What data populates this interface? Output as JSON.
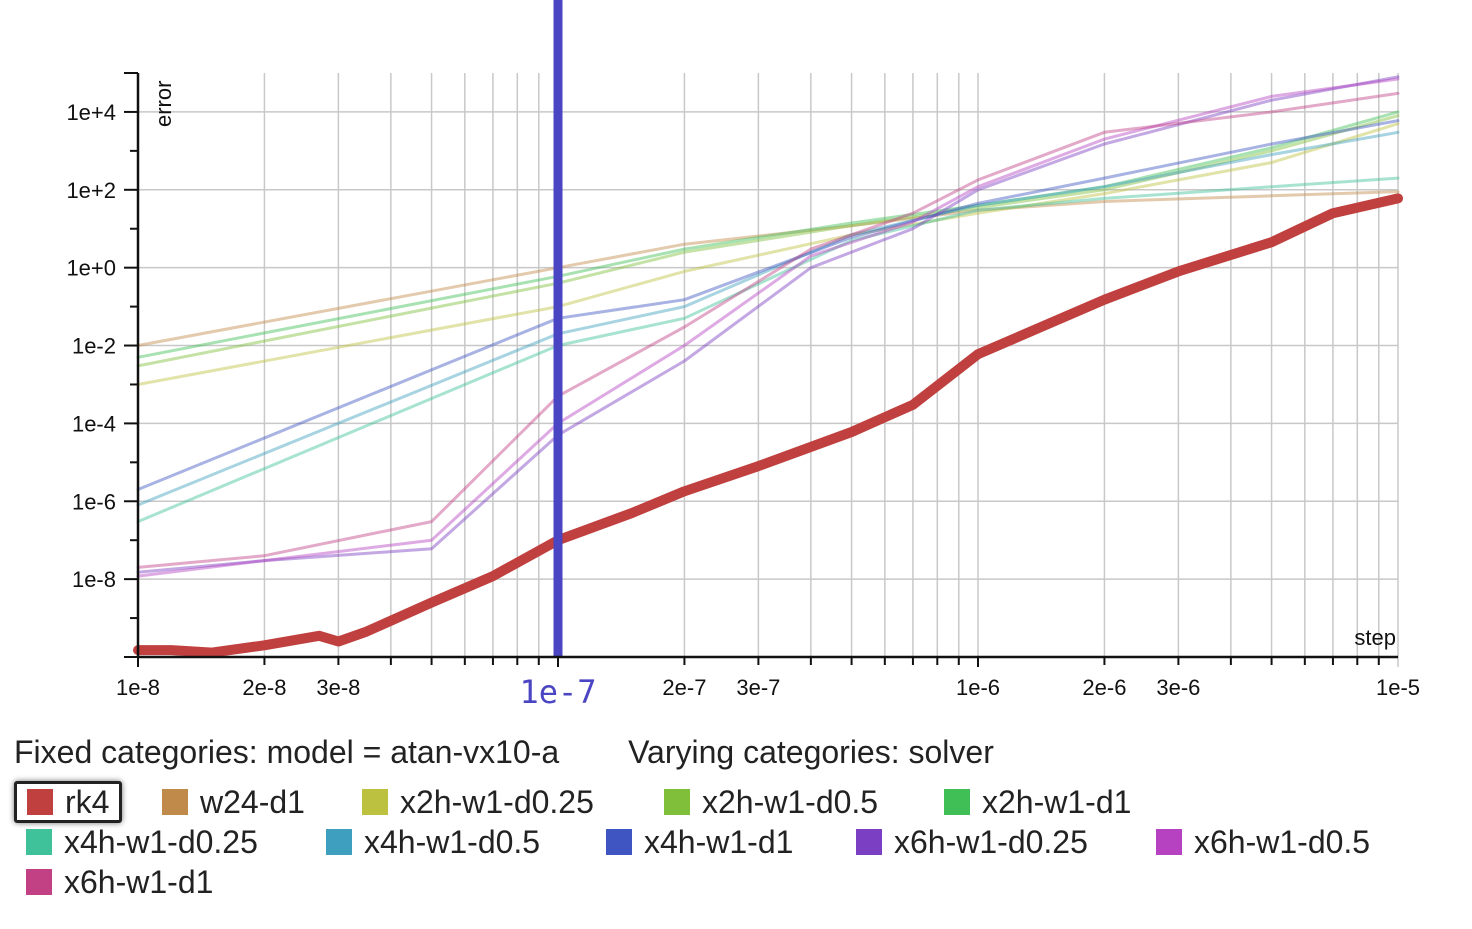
{
  "chart_data": {
    "type": "line",
    "title": "",
    "xlabel": "step",
    "ylabel": "error",
    "x_scale": "log",
    "y_scale": "log",
    "xlim": [
      1e-08,
      1e-05
    ],
    "ylim": [
      1e-10,
      100000.0
    ],
    "grid": true,
    "x_tick_labels": [
      {
        "value": 1e-08,
        "label": "1e-8"
      },
      {
        "value": 2e-08,
        "label": "2e-8"
      },
      {
        "value": 3e-08,
        "label": "3e-8"
      },
      {
        "value": 2e-07,
        "label": "2e-7"
      },
      {
        "value": 3e-07,
        "label": "3e-7"
      },
      {
        "value": 1e-06,
        "label": "1e-6"
      },
      {
        "value": 2e-06,
        "label": "2e-6"
      },
      {
        "value": 3e-06,
        "label": "3e-6"
      },
      {
        "value": 1e-05,
        "label": "1e-5"
      }
    ],
    "y_tick_labels": [
      {
        "value": 10000.0,
        "label": "1e+4"
      },
      {
        "value": 100.0,
        "label": "1e+2"
      },
      {
        "value": 1,
        "label": "1e+0"
      },
      {
        "value": 0.01,
        "label": "1e-2"
      },
      {
        "value": 0.0001,
        "label": "1e-4"
      },
      {
        "value": 1e-06,
        "label": "1e-6"
      },
      {
        "value": 1e-08,
        "label": "1e-8"
      }
    ],
    "cursor": {
      "x": 1e-07,
      "label": "1e-7",
      "color": "#4a45c2"
    },
    "series": [
      {
        "name": "rk4",
        "color": "#c0403f",
        "highlighted": true,
        "x": [
          1e-08,
          1.2e-08,
          1.5e-08,
          2e-08,
          2.7e-08,
          3e-08,
          3.5e-08,
          5e-08,
          7e-08,
          1e-07,
          1.5e-07,
          2e-07,
          3e-07,
          5e-07,
          7e-07,
          1e-06,
          2e-06,
          3e-06,
          5e-06,
          7e-06,
          1e-05
        ],
        "y": [
          1.5e-10,
          1.5e-10,
          1.3e-10,
          2e-10,
          3.5e-10,
          2.5e-10,
          4.5e-10,
          2.5e-09,
          1.2e-08,
          1e-07,
          5e-07,
          1.8e-06,
          8e-06,
          6e-05,
          0.0003,
          0.006,
          0.15,
          0.8,
          4.5,
          25,
          60
        ]
      },
      {
        "name": "w24-d1",
        "color": "#c08a4a",
        "x": [
          1e-08,
          1e-07,
          2e-07,
          5e-07,
          1e-06,
          2e-06,
          5e-06,
          1e-05
        ],
        "y": [
          0.01,
          1,
          4,
          12,
          30,
          50,
          70,
          90
        ]
      },
      {
        "name": "x2h-w1-d0.25",
        "color": "#bcc240",
        "x": [
          1e-08,
          1e-07,
          2e-07,
          5e-07,
          1e-06,
          2e-06,
          5e-06,
          1e-05
        ],
        "y": [
          0.001,
          0.1,
          0.8,
          7,
          25,
          80,
          500,
          5000
        ]
      },
      {
        "name": "x2h-w1-d0.5",
        "color": "#7fbf3a",
        "x": [
          1e-08,
          1e-07,
          2e-07,
          5e-07,
          1e-06,
          2e-06,
          5e-06,
          1e-05
        ],
        "y": [
          0.003,
          0.4,
          2.5,
          12,
          35,
          100,
          1000,
          8000
        ]
      },
      {
        "name": "x2h-w1-d1",
        "color": "#3fbf55",
        "x": [
          1e-08,
          1e-07,
          2e-07,
          5e-07,
          1e-06,
          2e-06,
          5e-06,
          1e-05
        ],
        "y": [
          0.005,
          0.6,
          3,
          14,
          40,
          120,
          1200,
          10000
        ]
      },
      {
        "name": "x4h-w1-d0.25",
        "color": "#3fc29a",
        "x": [
          1e-08,
          1e-07,
          2e-07,
          5e-07,
          1e-06,
          2e-06,
          5e-06,
          1e-05
        ],
        "y": [
          3e-07,
          0.01,
          0.05,
          5,
          30,
          60,
          120,
          200
        ]
      },
      {
        "name": "x4h-w1-d0.5",
        "color": "#3f9fbf",
        "x": [
          1e-08,
          1e-07,
          2e-07,
          5e-07,
          1e-06,
          2e-06,
          5e-06,
          1e-05
        ],
        "y": [
          8e-07,
          0.02,
          0.1,
          7,
          40,
          120,
          800,
          3000
        ]
      },
      {
        "name": "x4h-w1-d1",
        "color": "#3f56c2",
        "x": [
          1e-08,
          1e-07,
          2e-07,
          5e-07,
          1e-06,
          2e-06,
          5e-06,
          1e-05
        ],
        "y": [
          2e-06,
          0.05,
          0.15,
          6,
          45,
          200,
          1500,
          6000
        ]
      },
      {
        "name": "x6h-w1-d0.25",
        "color": "#7a3fc2",
        "x": [
          1e-08,
          2e-08,
          5e-08,
          1e-07,
          2e-07,
          4e-07,
          7e-07,
          1e-06,
          2e-06,
          5e-06,
          1e-05
        ],
        "y": [
          1.5e-08,
          3e-08,
          6e-08,
          5e-05,
          0.004,
          1,
          10,
          100,
          1500,
          20000,
          80000
        ]
      },
      {
        "name": "x6h-w1-d0.5",
        "color": "#b642c2",
        "x": [
          1e-08,
          2e-08,
          5e-08,
          1e-07,
          2e-07,
          4e-07,
          7e-07,
          1e-06,
          2e-06,
          5e-06,
          1e-05
        ],
        "y": [
          1.2e-08,
          3e-08,
          1e-07,
          0.0001,
          0.01,
          2,
          15,
          120,
          2000,
          25000,
          70000
        ]
      },
      {
        "name": "x6h-w1-d1",
        "color": "#c24084",
        "x": [
          1e-08,
          2e-08,
          5e-08,
          1e-07,
          2e-07,
          4e-07,
          7e-07,
          1e-06,
          2e-06,
          5e-06,
          1e-05
        ],
        "y": [
          2e-08,
          4e-08,
          3e-07,
          0.0005,
          0.03,
          3,
          25,
          180,
          3000,
          10000,
          30000
        ]
      }
    ]
  },
  "info": {
    "fixed": "Fixed categories: model = atan-vx10-a",
    "varying": "Varying categories: solver"
  }
}
